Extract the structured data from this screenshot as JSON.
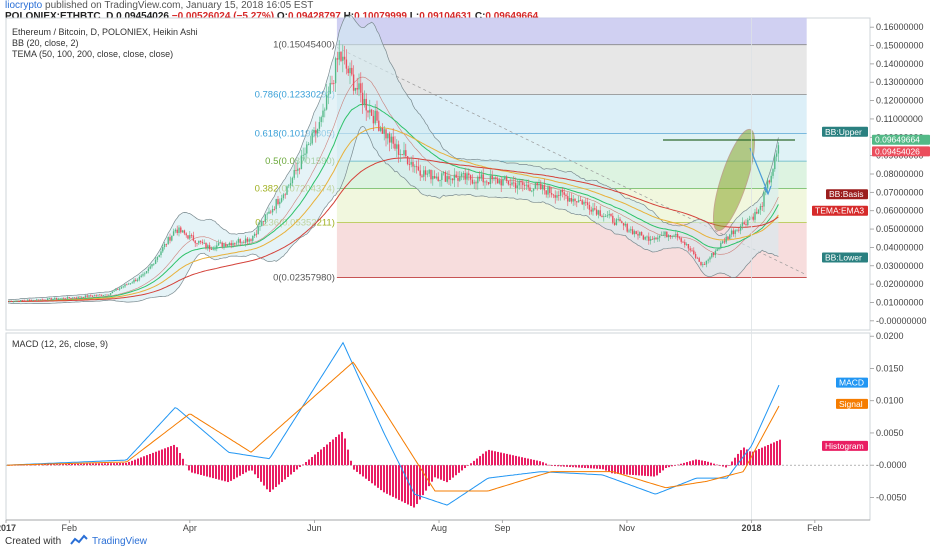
{
  "header": {
    "author": "liocrypto",
    "published_text": "published on TradingView.com, January 15, 2018 16:05 EST",
    "symbol": "POLONIEX:ETHBTC, D",
    "last": "0.09454026",
    "change": "−0.00526024 (−5.27%)",
    "open_label": "O:",
    "open": "0.09428797",
    "high_label": "H:",
    "high": "0.10079999",
    "low_label": "L:",
    "low": "0.09104631",
    "close_label": "C:",
    "close": "0.09649664"
  },
  "legend": {
    "line1": "Ethereum / Bitcoin, D, POLONIEX, Heikin Ashi",
    "line2": "BB (20, close, 2)",
    "line3": "TEMA (50, 100, 200, close, close, close)",
    "macd": "MACD (12, 26, close, 9)"
  },
  "footer": {
    "created": "Created with",
    "brand": "TradingView"
  },
  "colors": {
    "up": "#53b987",
    "down": "#eb4d5c",
    "bb_fill": "#d3ebf2",
    "bb_line": "#7a8a8f",
    "tema1": "#2ec26a",
    "tema2": "#e8b13a",
    "tema3": "#d4423a",
    "macd": "#2196f3",
    "signal": "#f57c00",
    "hist": "#e91e63"
  },
  "chart_data": [
    {
      "type": "candlestick",
      "title": "Ethereum / Bitcoin, D, POLONIEX, Heikin Ashi",
      "x_ticks": [
        "2017",
        "Feb",
        "Apr",
        "Jun",
        "Aug",
        "Sep",
        "Nov",
        "2018",
        "Feb"
      ],
      "y_ticks": [
        "0.16000000",
        "0.15000000",
        "0.14000000",
        "0.13000000",
        "0.12000000",
        "0.11000000",
        "0.10000000",
        "0.09000000",
        "0.08000000",
        "0.07000000",
        "0.06000000",
        "0.05000000",
        "0.04000000",
        "0.03000000",
        "0.02000000",
        "0.01000000",
        "-0.00000000"
      ],
      "ylim": [
        -0.005,
        0.165
      ],
      "approx_close_path": [
        [
          "2017-01-01",
          0.0105
        ],
        [
          "2017-02-01",
          0.0125
        ],
        [
          "2017-02-20",
          0.0145
        ],
        [
          "2017-03-10",
          0.025
        ],
        [
          "2017-03-25",
          0.05
        ],
        [
          "2017-04-10",
          0.04
        ],
        [
          "2017-05-01",
          0.045
        ],
        [
          "2017-05-20",
          0.075
        ],
        [
          "2017-06-05",
          0.11
        ],
        [
          "2017-06-13",
          0.145
        ],
        [
          "2017-06-25",
          0.12
        ],
        [
          "2017-07-10",
          0.095
        ],
        [
          "2017-07-25",
          0.08
        ],
        [
          "2017-08-10",
          0.078
        ],
        [
          "2017-09-01",
          0.076
        ],
        [
          "2017-09-20",
          0.072
        ],
        [
          "2017-10-10",
          0.065
        ],
        [
          "2017-10-25",
          0.055
        ],
        [
          "2017-11-10",
          0.045
        ],
        [
          "2017-11-25",
          0.048
        ],
        [
          "2017-12-08",
          0.03
        ],
        [
          "2017-12-22",
          0.048
        ],
        [
          "2018-01-05",
          0.06
        ],
        [
          "2018-01-15",
          0.096
        ]
      ],
      "fib_levels": [
        {
          "label": "1(0.15045400)",
          "value": 0.150454
        },
        {
          "label": "0.786(0.12330292)",
          "value": 0.12330292
        },
        {
          "label": "0.618(0.10198805)",
          "value": 0.10198805
        },
        {
          "label": "0.5(0.08701590)",
          "value": 0.0870159
        },
        {
          "label": "0.382(0.07204374)",
          "value": 0.07204374
        },
        {
          "label": "0.236(0.05352211)",
          "value": 0.05352211
        },
        {
          "label": "0(0.02357980)",
          "value": 0.0235798
        }
      ],
      "price_tags": [
        {
          "label": "BB:Upper",
          "value": 0.103
        },
        {
          "label": "0.09649664",
          "value": 0.09649664
        },
        {
          "label": "0.09454026",
          "value": 0.09454026
        },
        {
          "label": "BB:Basis",
          "value": 0.069
        },
        {
          "label": "TEMA:EMA3",
          "value": 0.06
        },
        {
          "label": "BB:Lower",
          "value": 0.0345
        }
      ]
    },
    {
      "type": "line",
      "title": "MACD (12, 26, close, 9)",
      "y_ticks": [
        "0.0200",
        "0.0150",
        "0.0100",
        "0.0050",
        "-0.0000",
        "-0.0050"
      ],
      "ylim": [
        -0.0085,
        0.0205
      ],
      "series": [
        {
          "name": "MACD",
          "points": [
            [
              "2017-01-01",
              0.0
            ],
            [
              "2017-03-01",
              0.0008
            ],
            [
              "2017-03-25",
              0.009
            ],
            [
              "2017-04-20",
              0.002
            ],
            [
              "2017-05-10",
              0.001
            ],
            [
              "2017-06-15",
              0.019
            ],
            [
              "2017-07-05",
              0.005
            ],
            [
              "2017-07-20",
              -0.0045
            ],
            [
              "2017-08-05",
              -0.0062
            ],
            [
              "2017-08-25",
              -0.002
            ],
            [
              "2017-09-20",
              -0.001
            ],
            [
              "2017-10-20",
              -0.0015
            ],
            [
              "2017-11-15",
              -0.0045
            ],
            [
              "2017-12-05",
              -0.002
            ],
            [
              "2017-12-20",
              -0.002
            ],
            [
              "2018-01-01",
              0.003
            ],
            [
              "2018-01-15",
              0.0128
            ]
          ]
        },
        {
          "name": "Signal",
          "points": [
            [
              "2017-01-01",
              0.0
            ],
            [
              "2017-03-01",
              0.0005
            ],
            [
              "2017-04-01",
              0.008
            ],
            [
              "2017-05-01",
              0.002
            ],
            [
              "2017-06-20",
              0.016
            ],
            [
              "2017-07-10",
              0.006
            ],
            [
              "2017-07-30",
              -0.004
            ],
            [
              "2017-08-25",
              -0.004
            ],
            [
              "2017-09-25",
              -0.001
            ],
            [
              "2017-10-25",
              -0.001
            ],
            [
              "2017-11-20",
              -0.0035
            ],
            [
              "2017-12-10",
              -0.0025
            ],
            [
              "2017-12-28",
              -0.001
            ],
            [
              "2018-01-15",
              0.0095
            ]
          ]
        }
      ],
      "tags": [
        {
          "label": "MACD",
          "value": 0.0128
        },
        {
          "label": "Signal",
          "value": 0.0095
        },
        {
          "label": "Histogram",
          "value": 0.003
        }
      ]
    }
  ]
}
